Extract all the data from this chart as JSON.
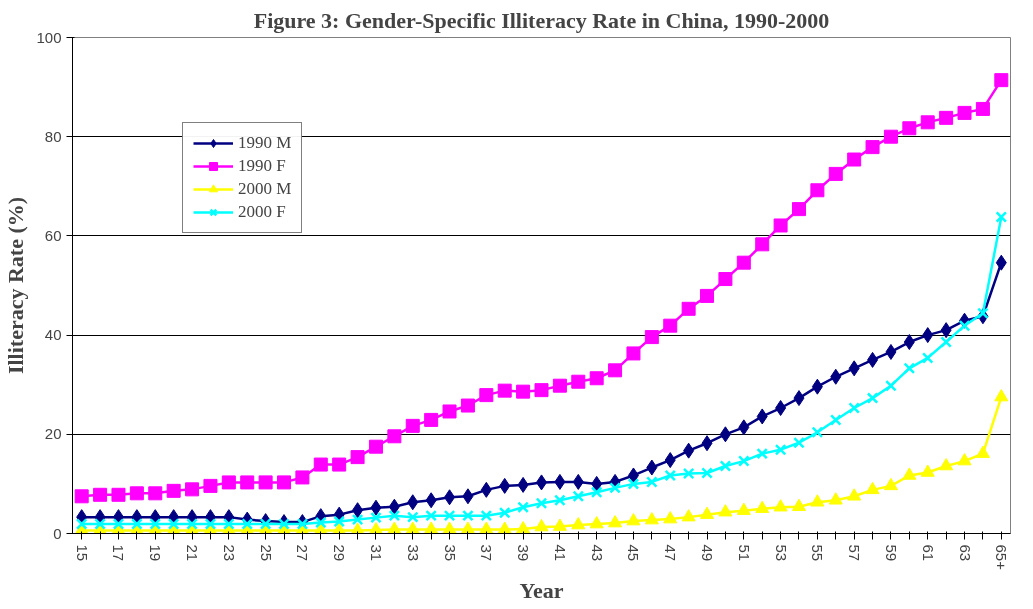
{
  "chart_data": {
    "type": "line",
    "title": "Figure 3: Gender-Specific Illiteracy Rate in China, 1990-2000",
    "xlabel": "Year",
    "ylabel": "Illiteracy Rate (%)",
    "categories": [
      "15",
      null,
      "17",
      null,
      "19",
      null,
      "21",
      null,
      "23",
      null,
      "25",
      null,
      "27",
      null,
      "29",
      null,
      "31",
      null,
      "33",
      null,
      "35",
      null,
      "37",
      null,
      "39",
      null,
      "41",
      null,
      "43",
      null,
      "45",
      null,
      "47",
      null,
      "49",
      null,
      "51",
      null,
      "53",
      null,
      "55",
      null,
      "57",
      null,
      "59",
      null,
      "61",
      null,
      "63",
      null,
      "65+"
    ],
    "ylim": [
      0,
      100
    ],
    "yticks": [
      0,
      20,
      40,
      60,
      80,
      100
    ],
    "grid": "y",
    "legend": "top left",
    "series": [
      {
        "name": "1990 M",
        "color": "#000080",
        "marker": "diamond",
        "values": [
          3.3,
          3.3,
          3.3,
          3.3,
          3.3,
          3.3,
          3.3,
          3.3,
          3.3,
          2.8,
          2.5,
          2.3,
          2.3,
          3.5,
          3.8,
          4.7,
          5.2,
          5.4,
          6.3,
          6.7,
          7.3,
          7.5,
          8.8,
          9.6,
          9.8,
          10.3,
          10.4,
          10.4,
          10,
          10.4,
          11.7,
          13.3,
          14.8,
          16.7,
          18.2,
          20,
          21.4,
          23.6,
          25.3,
          27.3,
          29.6,
          31.6,
          33.3,
          35,
          36.6,
          38.6,
          40,
          41,
          42.9,
          43.8,
          54.6
        ]
      },
      {
        "name": "1990 F",
        "color": "#ff00ff",
        "marker": "square",
        "values": [
          7.5,
          7.8,
          7.8,
          8.1,
          8.1,
          8.6,
          8.9,
          9.6,
          10.3,
          10.3,
          10.3,
          10.3,
          11.3,
          13.9,
          13.9,
          15.4,
          17.5,
          19.6,
          21.7,
          22.9,
          24.6,
          25.8,
          27.9,
          28.8,
          28.6,
          28.9,
          29.8,
          30.6,
          31.3,
          32.9,
          36.3,
          39.6,
          41.9,
          45.3,
          47.9,
          51.3,
          54.6,
          58.3,
          62.1,
          65.4,
          69.2,
          72.5,
          75.4,
          77.9,
          80,
          81.7,
          82.9,
          83.8,
          84.8,
          85.6,
          91.4
        ]
      },
      {
        "name": "2000 M",
        "color": "#ffff00",
        "marker": "triangle",
        "values": [
          0.6,
          0.6,
          0.6,
          0.6,
          0.6,
          0.6,
          0.6,
          0.6,
          0.6,
          0.6,
          0.6,
          0.6,
          0.6,
          0.6,
          0.6,
          0.6,
          0.7,
          0.8,
          0.8,
          0.8,
          0.8,
          0.8,
          0.8,
          0.8,
          0.9,
          1.3,
          1.4,
          1.7,
          1.9,
          2.1,
          2.5,
          2.7,
          2.9,
          3.3,
          3.8,
          4.3,
          4.6,
          5,
          5.3,
          5.4,
          6.3,
          6.7,
          7.5,
          8.8,
          9.6,
          11.7,
          12.3,
          13.6,
          14.6,
          16.1,
          27.5
        ]
      },
      {
        "name": "2000 F",
        "color": "#00ffff",
        "marker": "cross",
        "values": [
          1.9,
          1.9,
          1.9,
          1.9,
          1.9,
          1.9,
          1.9,
          1.9,
          1.9,
          1.9,
          1.9,
          1.9,
          1.9,
          2.2,
          2.4,
          2.8,
          3.2,
          3.6,
          3.3,
          3.6,
          3.6,
          3.6,
          3.6,
          4.2,
          5.3,
          6.1,
          6.7,
          7.5,
          8.3,
          9.2,
          10,
          10.4,
          11.7,
          12.1,
          12.2,
          13.6,
          14.6,
          16.1,
          16.9,
          18.3,
          20.4,
          22.9,
          25.3,
          27.3,
          29.8,
          33.3,
          35.4,
          38.6,
          41.9,
          44.4,
          63.8
        ]
      }
    ]
  }
}
